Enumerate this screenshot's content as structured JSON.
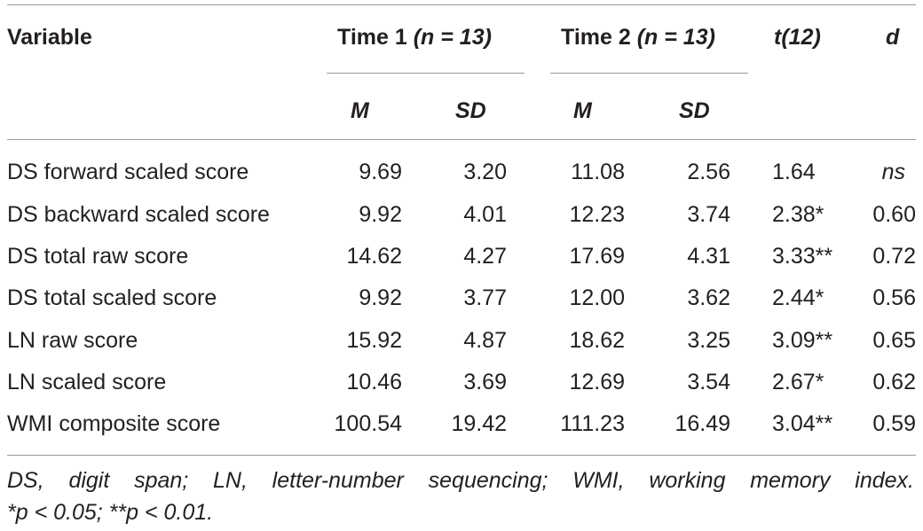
{
  "header": {
    "variable": "Variable",
    "time1_label": "Time 1 ",
    "time1_n": "(n = 13)",
    "time2_label": "Time 2 ",
    "time2_n": "(n = 13)",
    "t_label": "t(12)",
    "d_label": "d",
    "m1": "M",
    "sd1": "SD",
    "m2": "M",
    "sd2": "SD"
  },
  "rows": [
    {
      "variable": "DS forward scaled score",
      "m1": "9.69",
      "sd1": "3.20",
      "m2": "11.08",
      "sd2": "2.56",
      "t": "1.64",
      "t_sig": "",
      "d": "ns"
    },
    {
      "variable": "DS backward scaled score",
      "m1": "9.92",
      "sd1": "4.01",
      "m2": "12.23",
      "sd2": "3.74",
      "t": "2.38",
      "t_sig": "*",
      "d": "0.60"
    },
    {
      "variable": "DS total raw score",
      "m1": "14.62",
      "sd1": "4.27",
      "m2": "17.69",
      "sd2": "4.31",
      "t": "3.33",
      "t_sig": "**",
      "d": "0.72"
    },
    {
      "variable": "DS total scaled score",
      "m1": "9.92",
      "sd1": "3.77",
      "m2": "12.00",
      "sd2": "3.62",
      "t": "2.44",
      "t_sig": "*",
      "d": "0.56"
    },
    {
      "variable": "LN raw score",
      "m1": "15.92",
      "sd1": "4.87",
      "m2": "18.62",
      "sd2": "3.25",
      "t": "3.09",
      "t_sig": "**",
      "d": "0.65"
    },
    {
      "variable": "LN scaled score",
      "m1": "10.46",
      "sd1": "3.69",
      "m2": "12.69",
      "sd2": "3.54",
      "t": "2.67",
      "t_sig": "*",
      "d": "0.62"
    },
    {
      "variable": "WMI composite score",
      "m1": "100.54",
      "sd1": "19.42",
      "m2": "111.23",
      "sd2": "16.49",
      "t": "3.04",
      "t_sig": "**",
      "d": "0.59"
    }
  ],
  "note": {
    "line1": "DS, digit span; LN, letter-number sequencing; WMI, working memory index.",
    "line2": "*p < 0.05; **p < 0.01."
  }
}
